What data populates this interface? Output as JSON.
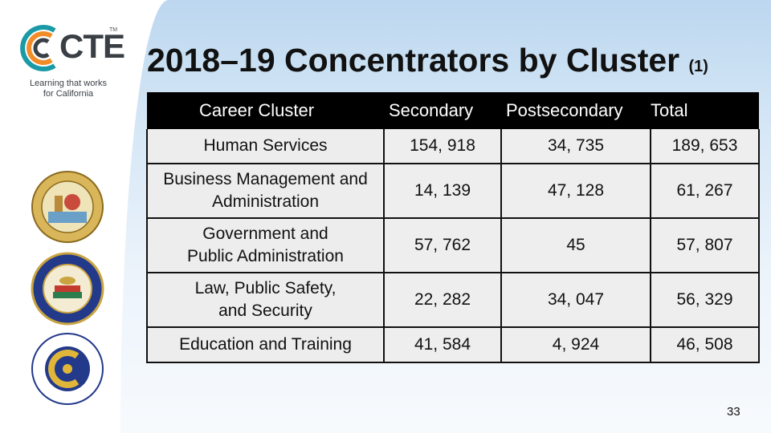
{
  "logo": {
    "wordmark": "CTE",
    "tm": "TM",
    "tagline_line1": "Learning that works",
    "tagline_line2": "for California"
  },
  "slide": {
    "title": "2018–19 Concentrators by Cluster",
    "title_note": "(1)",
    "page_number": "33"
  },
  "table": {
    "headers": [
      "Career Cluster",
      "Secondary",
      "Postsecondary",
      "Total"
    ],
    "rows": [
      {
        "cluster_line1": "Human Services",
        "cluster_line2": "",
        "secondary": "154, 918",
        "postsecondary": "34, 735",
        "total": "189, 653"
      },
      {
        "cluster_line1": "Business Management and",
        "cluster_line2": "Administration",
        "secondary": "14, 139",
        "postsecondary": "47, 128",
        "total": "61, 267"
      },
      {
        "cluster_line1": "Government and",
        "cluster_line2": "Public Administration",
        "secondary": "57, 762",
        "postsecondary": "45",
        "total": "57, 807"
      },
      {
        "cluster_line1": "Law, Public Safety,",
        "cluster_line2": "and Security",
        "secondary": "22, 282",
        "postsecondary": "34, 047",
        "total": "56, 329"
      },
      {
        "cluster_line1": "Education and Training",
        "cluster_line2": "",
        "secondary": "41, 584",
        "postsecondary": "4, 924",
        "total": "46, 508"
      }
    ]
  },
  "colors": {
    "header_bg": "#000000",
    "cell_bg": "#eeeeee",
    "logo_teal": "#1a9aa6",
    "logo_orange": "#f28c28"
  }
}
